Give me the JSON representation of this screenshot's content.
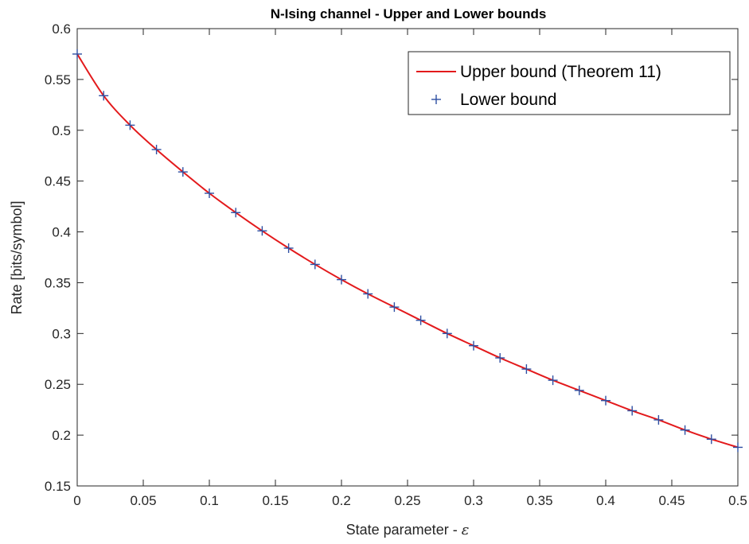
{
  "chart_data": {
    "type": "line",
    "title": "N-Ising channel - Upper and Lower bounds",
    "xlabel": "State parameter - ",
    "xlabel_symbol": "ε",
    "ylabel": "Rate [bits/symbol]",
    "xlim": [
      0,
      0.5
    ],
    "ylim": [
      0.15,
      0.6
    ],
    "x_ticks": [
      "0",
      "0.05",
      "0.1",
      "0.15",
      "0.2",
      "0.25",
      "0.3",
      "0.35",
      "0.4",
      "0.45",
      "0.5"
    ],
    "y_ticks": [
      "0.15",
      "0.2",
      "0.25",
      "0.3",
      "0.35",
      "0.4",
      "0.45",
      "0.5",
      "0.55",
      "0.6"
    ],
    "grid": false,
    "legend_position": "top-right",
    "x": [
      0,
      0.02,
      0.04,
      0.06,
      0.08,
      0.1,
      0.12,
      0.14,
      0.16,
      0.18,
      0.2,
      0.22,
      0.24,
      0.26,
      0.28,
      0.3,
      0.32,
      0.34,
      0.36,
      0.38,
      0.4,
      0.42,
      0.44,
      0.46,
      0.48,
      0.5
    ],
    "series": [
      {
        "name": "Upper bound (Theorem 11)",
        "style": "line",
        "color": "#e31a1c",
        "values": [
          0.575,
          0.534,
          0.505,
          0.481,
          0.459,
          0.438,
          0.419,
          0.401,
          0.384,
          0.368,
          0.353,
          0.339,
          0.326,
          0.313,
          0.3,
          0.288,
          0.276,
          0.265,
          0.254,
          0.244,
          0.234,
          0.224,
          0.215,
          0.205,
          0.196,
          0.188
        ]
      },
      {
        "name": "Lower bound",
        "style": "marker-plus",
        "color": "#2e4fa3",
        "values": [
          0.575,
          0.534,
          0.505,
          0.481,
          0.459,
          0.438,
          0.419,
          0.401,
          0.384,
          0.368,
          0.353,
          0.339,
          0.326,
          0.313,
          0.3,
          0.288,
          0.276,
          0.265,
          0.254,
          0.244,
          0.234,
          0.224,
          0.215,
          0.205,
          0.196,
          0.188
        ]
      }
    ]
  }
}
